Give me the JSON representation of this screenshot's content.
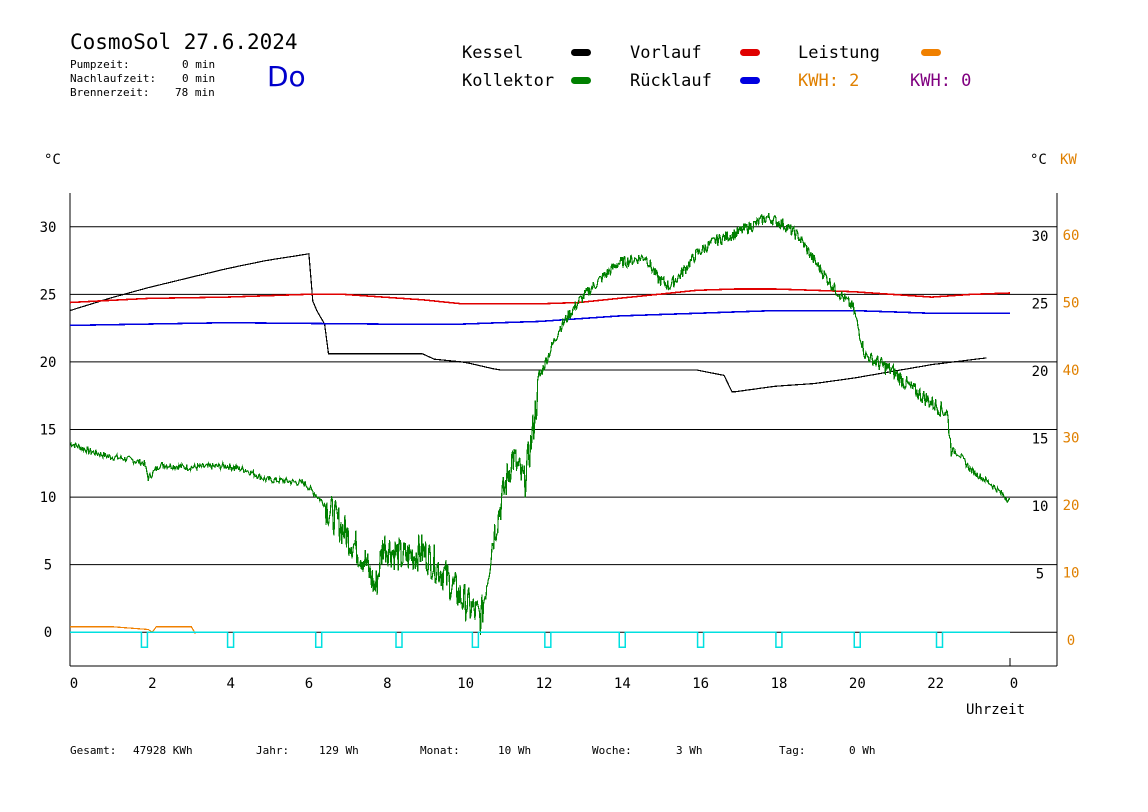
{
  "header": {
    "title": "CosmoSol 27.6.2024",
    "day": "Do",
    "stats": [
      {
        "label": "Pumpzeit:",
        "value": "0 min"
      },
      {
        "label": "Nachlaufzeit:",
        "value": "0 min"
      },
      {
        "label": "Brennerzeit:",
        "value": "78 min"
      }
    ]
  },
  "legend": {
    "items": [
      {
        "label": "Kessel",
        "color": "#000000"
      },
      {
        "label": "Vorlauf",
        "color": "#e00000"
      },
      {
        "label": "Leistung",
        "color": "#f08000"
      },
      {
        "label": "Kollektor",
        "color": "#008000"
      },
      {
        "label": "Rücklauf",
        "color": "#0000e0"
      }
    ],
    "kwh_orange": "KWH: 2",
    "kwh_purple": "KWH: 0",
    "kwh_orange_color": "#e08000",
    "kwh_purple_color": "#800080"
  },
  "axes": {
    "left_unit": "°C",
    "right_unit": "°C",
    "right_unit2": "KW",
    "xlabel": "Uhrzeit"
  },
  "footer": [
    {
      "label": "Gesamt:",
      "value": "47928 KWh"
    },
    {
      "label": "Jahr:",
      "value": "129 Wh"
    },
    {
      "label": "Monat:",
      "value": "10 Wh"
    },
    {
      "label": "Woche:",
      "value": "3 Wh"
    },
    {
      "label": "Tag:",
      "value": "0 Wh"
    }
  ],
  "chart_data": {
    "type": "line",
    "xlim": [
      0,
      24
    ],
    "ylim_left": [
      -2.5,
      32.5
    ],
    "ylim_right": [
      -5,
      65
    ],
    "x_ticks": [
      "0",
      "2",
      "4",
      "6",
      "8",
      "10",
      "12",
      "14",
      "16",
      "18",
      "20",
      "22",
      "0"
    ],
    "y_ticks_left": [
      0,
      5,
      10,
      15,
      20,
      25,
      30
    ],
    "y_ticks_right_c": [
      5,
      10,
      15,
      20,
      25,
      30
    ],
    "y_ticks_right_kw": [
      0,
      10,
      20,
      30,
      40,
      50,
      60
    ],
    "gridlines": [
      5,
      10,
      15,
      20,
      25,
      30
    ],
    "series": [
      {
        "name": "Kessel",
        "color": "#000000",
        "x": [
          0,
          1,
          2,
          3,
          4,
          5,
          6.1,
          6.2,
          6.3,
          6.5,
          6.6,
          7,
          8,
          9,
          9.3,
          10,
          10.2,
          10.8,
          11,
          12,
          14,
          16,
          16.7,
          16.9,
          17,
          18,
          19,
          20,
          21,
          22,
          23.4
        ],
        "y": [
          23.8,
          24.7,
          25.5,
          26.2,
          26.9,
          27.5,
          28.0,
          24.5,
          23.8,
          22.8,
          20.6,
          20.6,
          20.6,
          20.6,
          20.2,
          20.0,
          19.9,
          19.5,
          19.4,
          19.4,
          19.4,
          19.4,
          19.0,
          17.8,
          17.8,
          18.2,
          18.4,
          18.8,
          19.3,
          19.8,
          20.3
        ]
      },
      {
        "name": "Vorlauf",
        "color": "#e00000",
        "x": [
          0,
          2,
          4,
          6,
          7,
          8,
          9,
          10,
          11,
          12,
          13,
          14,
          15,
          16,
          17,
          18,
          19,
          20,
          21,
          22,
          23,
          24
        ],
        "y": [
          24.4,
          24.7,
          24.8,
          25.0,
          25.0,
          24.8,
          24.6,
          24.3,
          24.3,
          24.3,
          24.4,
          24.7,
          25.0,
          25.3,
          25.4,
          25.4,
          25.3,
          25.2,
          25.0,
          24.8,
          25.0,
          25.1
        ]
      },
      {
        "name": "Rücklauf",
        "color": "#0000e0",
        "x": [
          0,
          4,
          8,
          10,
          11,
          12,
          13,
          14,
          15,
          16,
          17,
          18,
          19,
          20,
          21,
          22,
          23,
          24
        ],
        "y": [
          22.7,
          22.9,
          22.8,
          22.8,
          22.9,
          23.0,
          23.2,
          23.4,
          23.5,
          23.6,
          23.7,
          23.8,
          23.8,
          23.8,
          23.7,
          23.6,
          23.6,
          23.6
        ]
      },
      {
        "name": "Kollektor",
        "color": "#008000",
        "x": [
          0,
          0.5,
          1,
          1.5,
          1.9,
          2.0,
          2.3,
          3,
          4,
          4.5,
          5,
          5.5,
          6,
          6.5,
          7,
          7.5,
          7.8,
          8,
          8.5,
          9,
          9.5,
          10,
          10.5,
          10.8,
          11,
          11.3,
          11.6,
          11.8,
          12,
          12.5,
          13,
          13.5,
          14,
          14.3,
          14.7,
          15,
          15.3,
          15.6,
          16,
          16.5,
          17,
          17.5,
          17.8,
          18.2,
          18.6,
          19,
          19.5,
          20,
          20.3,
          20.6,
          21,
          21.5,
          22,
          22.4,
          22.5,
          22.7,
          23,
          23.5,
          24
        ],
        "y": [
          14.0,
          13.4,
          13.0,
          12.8,
          12.5,
          11.4,
          12.4,
          12.2,
          12.3,
          12.0,
          11.3,
          11.2,
          11.0,
          9.5,
          7.5,
          5.5,
          3.2,
          6.5,
          5.5,
          6.0,
          4.5,
          2.5,
          1.0,
          7.0,
          9.5,
          13.0,
          11.0,
          14.5,
          19.0,
          22.5,
          24.5,
          26.0,
          27.3,
          27.5,
          27.8,
          26.2,
          25.6,
          26.5,
          28.0,
          29.0,
          29.5,
          30.2,
          30.7,
          30.2,
          29.3,
          27.5,
          25.5,
          24.0,
          20.5,
          20.0,
          19.3,
          18.0,
          17.0,
          16.2,
          13.5,
          13.2,
          12.0,
          11.0,
          9.7
        ]
      },
      {
        "name": "Leistung",
        "color": "#f08000",
        "x": [
          0,
          1.1,
          2.0,
          2.1,
          2.2,
          3.1,
          3.2
        ],
        "y": [
          0.4,
          0.4,
          0.2,
          0.0,
          0.4,
          0.4,
          -0.1
        ]
      },
      {
        "name": "",
        "color": "#00e0e0",
        "pulses_x": [
          1.9,
          4.1,
          6.35,
          8.4,
          10.35,
          12.2,
          14.1,
          16.1,
          18.1,
          20.1,
          22.2
        ],
        "baseline": 0
      }
    ]
  }
}
